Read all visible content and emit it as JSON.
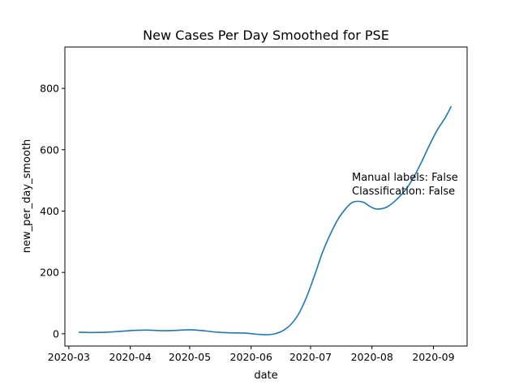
{
  "chart_data": {
    "type": "line",
    "title": "New Cases Per Day Smoothed for PSE",
    "xlabel": "date",
    "ylabel": "new_per_day_smooth",
    "xlim": [
      "2020-02-28",
      "2020-09-18"
    ],
    "ylim": [
      -40,
      935
    ],
    "x_ticks": [
      "2020-03",
      "2020-04",
      "2020-05",
      "2020-06",
      "2020-07",
      "2020-08",
      "2020-09"
    ],
    "y_ticks": [
      0,
      200,
      400,
      600,
      800
    ],
    "grid": false,
    "series": [
      {
        "color": "#1f77b4",
        "points": [
          [
            "2020-03-06",
            5
          ],
          [
            "2020-03-13",
            4
          ],
          [
            "2020-03-20",
            5
          ],
          [
            "2020-03-27",
            8
          ],
          [
            "2020-04-03",
            11
          ],
          [
            "2020-04-10",
            12
          ],
          [
            "2020-04-17",
            10
          ],
          [
            "2020-04-24",
            11
          ],
          [
            "2020-05-01",
            13
          ],
          [
            "2020-05-08",
            10
          ],
          [
            "2020-05-15",
            5
          ],
          [
            "2020-05-22",
            3
          ],
          [
            "2020-05-29",
            2
          ],
          [
            "2020-06-05",
            -2
          ],
          [
            "2020-06-09",
            -3
          ],
          [
            "2020-06-13",
            0
          ],
          [
            "2020-06-17",
            10
          ],
          [
            "2020-06-21",
            30
          ],
          [
            "2020-06-25",
            65
          ],
          [
            "2020-06-29",
            120
          ],
          [
            "2020-07-03",
            190
          ],
          [
            "2020-07-07",
            265
          ],
          [
            "2020-07-11",
            325
          ],
          [
            "2020-07-15",
            375
          ],
          [
            "2020-07-19",
            410
          ],
          [
            "2020-07-22",
            428
          ],
          [
            "2020-07-25",
            432
          ],
          [
            "2020-07-28",
            428
          ],
          [
            "2020-07-31",
            415
          ],
          [
            "2020-08-03",
            407
          ],
          [
            "2020-08-06",
            408
          ],
          [
            "2020-08-09",
            415
          ],
          [
            "2020-08-13",
            435
          ],
          [
            "2020-08-18",
            470
          ],
          [
            "2020-08-22",
            510
          ],
          [
            "2020-08-26",
            560
          ],
          [
            "2020-08-30",
            615
          ],
          [
            "2020-09-03",
            665
          ],
          [
            "2020-09-07",
            705
          ],
          [
            "2020-09-10",
            742
          ]
        ]
      }
    ],
    "annotations": [
      "Manual labels: False",
      "Classification: False"
    ]
  }
}
